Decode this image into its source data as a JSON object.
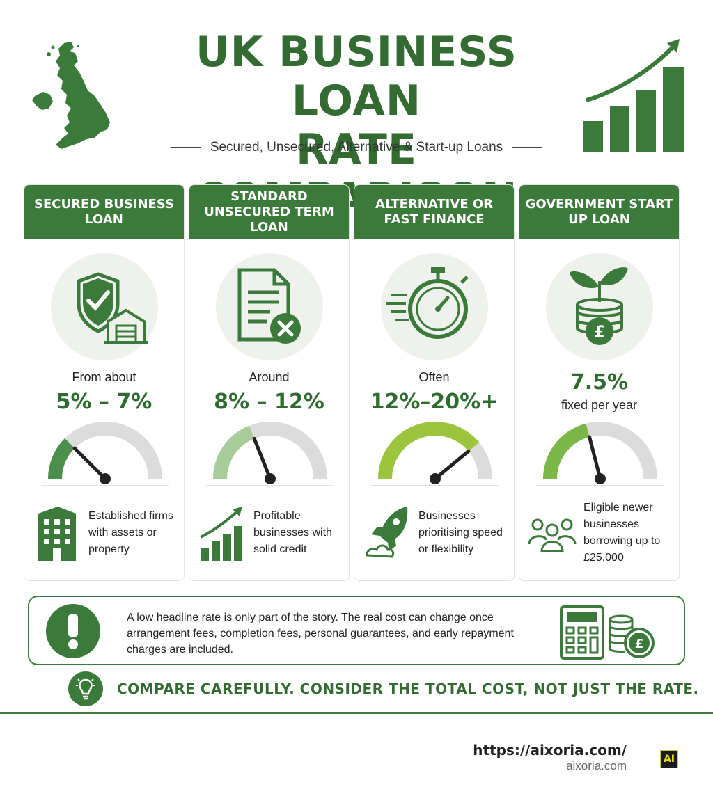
{
  "header": {
    "title_line1": "UK BUSINESS LOAN",
    "title_line2": "RATE COMPARISON",
    "subtitle": "Secured, Unsecured, Alternative & Start-up Loans"
  },
  "colors": {
    "primary_green": "#3b7a3b",
    "text_green": "#2f6b30",
    "gauge_track": "#dcdcdc"
  },
  "cards": [
    {
      "title": "SECURED BUSINESS LOAN",
      "icon": "shield-check-warehouse-icon",
      "rate_prefix": "From about",
      "rate": "5% – 7%",
      "rate_suffix": "",
      "gauge_level": 0.25,
      "gauge_color": "#4a8f4a",
      "audience_icon": "office-building-icon",
      "audience": "Established firms with assets or property"
    },
    {
      "title": "STANDARD UNSECURED TERM LOAN",
      "icon": "document-x-icon",
      "rate_prefix": "Around",
      "rate": "8% – 12%",
      "rate_suffix": "",
      "gauge_level": 0.38,
      "gauge_color": "#a7cc9a",
      "audience_icon": "growth-chart-icon",
      "audience": "Profitable businesses with solid credit"
    },
    {
      "title": "ALTERNATIVE OR FAST FINANCE",
      "icon": "stopwatch-icon",
      "rate_prefix": "Often",
      "rate": "12%–20%+",
      "rate_suffix": "",
      "gauge_level": 0.78,
      "gauge_color": "#9cc43c",
      "audience_icon": "rocket-icon",
      "audience": "Businesses prioritising speed or flexibility"
    },
    {
      "title": "GOVERNMENT START UP LOAN",
      "icon": "sprout-coins-icon",
      "rate_prefix": "",
      "rate": "7.5%",
      "rate_suffix": "fixed per year",
      "gauge_level": 0.42,
      "gauge_color": "#7ab648",
      "audience_icon": "people-group-icon",
      "audience": "Eligible newer businesses borrowing up to £25,000"
    }
  ],
  "note": {
    "icon": "exclamation-icon",
    "text": "A low headline rate is only part of the story. The real cost can change once arrangement fees, completion fees, personal guarantees, and early repayment charges are included.",
    "side_icon": "calculator-coins-icon"
  },
  "tip": {
    "icon": "lightbulb-icon",
    "text": "COMPARE CAREFULLY. CONSIDER THE TOTAL COST, NOT JUST THE RATE."
  },
  "footer": {
    "url": "https://aixoria.com/",
    "domain": "aixoria.com",
    "logo_text": "AI"
  }
}
